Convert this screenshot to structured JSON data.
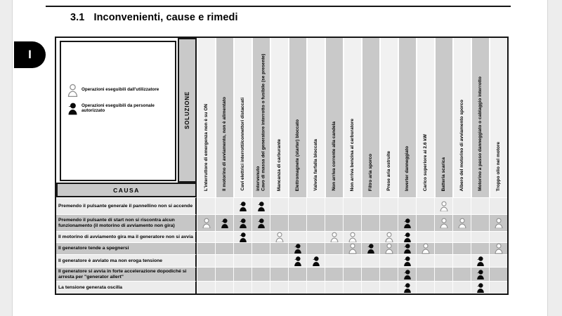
{
  "header": {
    "section_number": "3.1",
    "title": "Inconvenienti, cause e rimedi",
    "side_tab_label": "I"
  },
  "legend": {
    "items": [
      {
        "icon": "user-outline-icon",
        "type": "U",
        "label": "Operazioni eseguibili dall'utilizzatore"
      },
      {
        "icon": "technician-filled-icon",
        "type": "T",
        "label": "Operazioni eseguibili da personale autorizzato"
      }
    ]
  },
  "table": {
    "solution_header": "SOLUZIONE",
    "cause_header": "CAUSA",
    "cell_codes": {
      "U": "operazione eseguibile dall'utilizzatore",
      "T": "operazione eseguibile da personale autorizzato"
    },
    "columns": [
      "L'interruttore di emergenza non è su ON",
      "Il motorino di avviamento, non è alimentato",
      "Cavi elettrici interrotti/connettori distaccati",
      "Cavo di massa del generatore interrotto o fusibile (se presente) intervenuto",
      "Mancanza di carburante",
      "Elettromagnete (starter) bloccato",
      "Valvola farfalla bloccata",
      "Non arriva corrente alla candela",
      "Non arriva benzina al carburatore",
      "Filtro aria sporco",
      "Prese aria ostruite",
      "Inverter danneggiato",
      "Carico superiore ai 2.6 kW",
      "Batteria scarica",
      "Albero del motorino di avviamento sporco",
      "Motorino a passo danneggiato o cablaggio interrotto",
      "Troppo olio nel motore"
    ],
    "rows": [
      {
        "label": "Premendo il pulsante generale il pannellino non si accende",
        "cells": [
          "",
          "",
          "T",
          "T",
          "",
          "",
          "",
          "",
          "",
          "",
          "",
          "",
          "",
          "U",
          "",
          "",
          ""
        ]
      },
      {
        "label": "Premendo il pulsante di start non si riscontra alcun funzionamento (il motorino di avviamento non gira)",
        "cells": [
          "U",
          "T",
          "T",
          "T",
          "",
          "",
          "",
          "",
          "",
          "",
          "",
          "T",
          "",
          "U",
          "U",
          "",
          "U"
        ]
      },
      {
        "label": "Il motorino di avviamento gira ma il generatore non si avvia",
        "cells": [
          "",
          "",
          "T",
          "",
          "U",
          "",
          "",
          "U",
          "U",
          "",
          "U",
          "T",
          "",
          "",
          "",
          "",
          ""
        ]
      },
      {
        "label": "Il generatore tende a spegnersi",
        "cells": [
          "",
          "",
          "",
          "",
          "",
          "T",
          "",
          "",
          "U",
          "T",
          "U",
          "T",
          "U",
          "",
          "",
          "",
          "U"
        ]
      },
      {
        "label": "Il generatore è avviato ma non eroga tensione",
        "cells": [
          "",
          "",
          "",
          "",
          "",
          "T",
          "T",
          "",
          "",
          "",
          "",
          "T",
          "",
          "",
          "",
          "T",
          ""
        ]
      },
      {
        "label": "Il generatore si avvia in forte accelerazione dopodiché si arresta per \"generator allert\"",
        "cells": [
          "",
          "",
          "",
          "",
          "",
          "",
          "",
          "",
          "",
          "",
          "",
          "T",
          "",
          "",
          "",
          "T",
          ""
        ]
      },
      {
        "label": "La tensione generata oscilla",
        "cells": [
          "",
          "",
          "",
          "",
          "",
          "",
          "",
          "",
          "",
          "",
          "",
          "T",
          "",
          "",
          "",
          "T",
          ""
        ]
      }
    ]
  },
  "colors": {
    "band_light": "#f1f1f1",
    "band_gray": "#c9c9c9",
    "row_light": "#ececec",
    "row_gray": "#c6c6c6",
    "tab_black": "#000000"
  }
}
